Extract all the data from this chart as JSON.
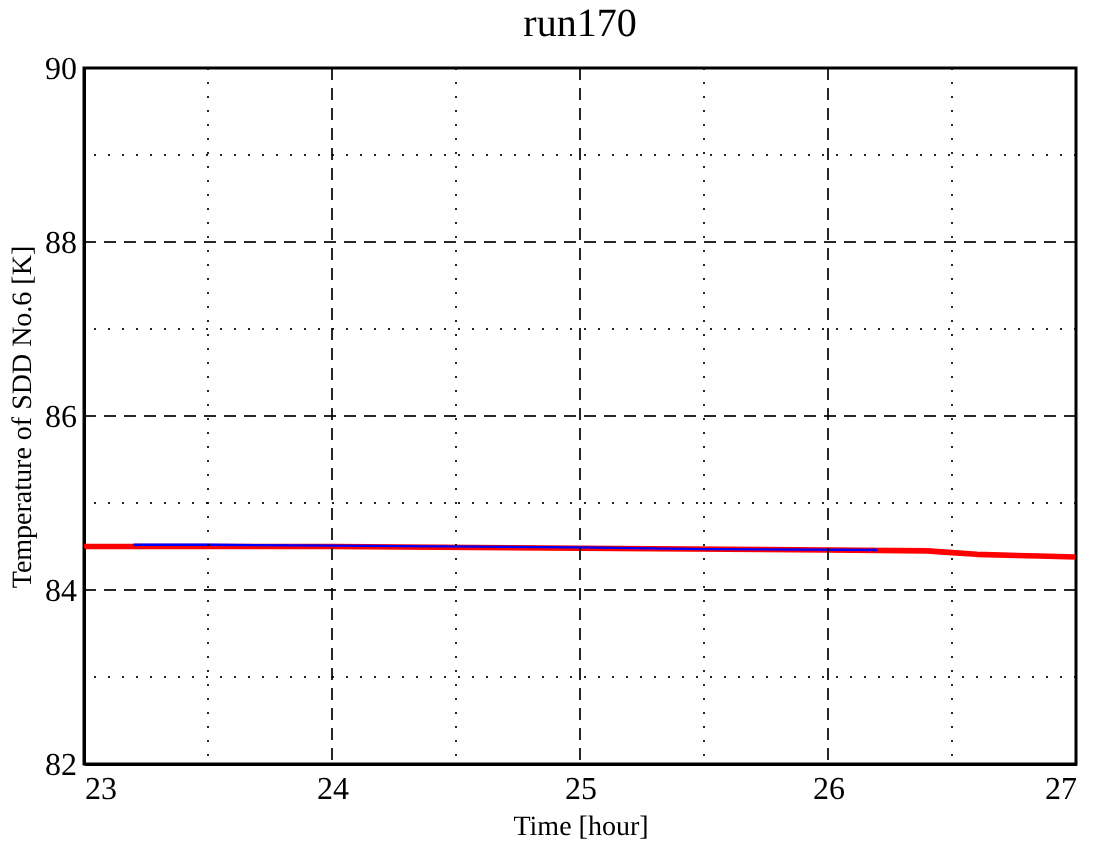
{
  "chart_data": {
    "type": "line",
    "title": "run170",
    "xlabel": "Time [hour]",
    "ylabel": "Temperature of SDD No.6 [K]",
    "xlim": [
      23,
      27
    ],
    "ylim": [
      82,
      90
    ],
    "xticks": [
      23,
      {
        "value": 23.5,
        "label": null
      },
      24,
      {
        "value": 24.5,
        "label": null
      },
      25,
      {
        "value": 25.5,
        "label": null
      },
      26,
      {
        "value": 26.5,
        "label": null
      },
      27
    ],
    "yticks": [
      82,
      {
        "value": 83,
        "label": null
      },
      84,
      {
        "value": 85,
        "label": null
      },
      86,
      {
        "value": 87,
        "label": null
      },
      88,
      {
        "value": 89,
        "label": null
      },
      90
    ],
    "grid": true,
    "line_style": "solid",
    "series": [
      {
        "color": "#ff0000",
        "x": [
          23,
          23.2,
          24,
          25,
          26,
          26.4,
          26.5,
          26.6,
          26.85,
          27
        ],
        "values": [
          84.5,
          84.5,
          84.5,
          84.48,
          84.46,
          84.45,
          84.43,
          84.41,
          84.39,
          84.38
        ]
      },
      {
        "color": "#0000ff",
        "x": [
          23.2,
          23.5,
          24,
          25,
          25.5,
          26.2
        ],
        "values": [
          84.52,
          84.52,
          84.51,
          84.49,
          84.47,
          84.46
        ]
      }
    ]
  }
}
